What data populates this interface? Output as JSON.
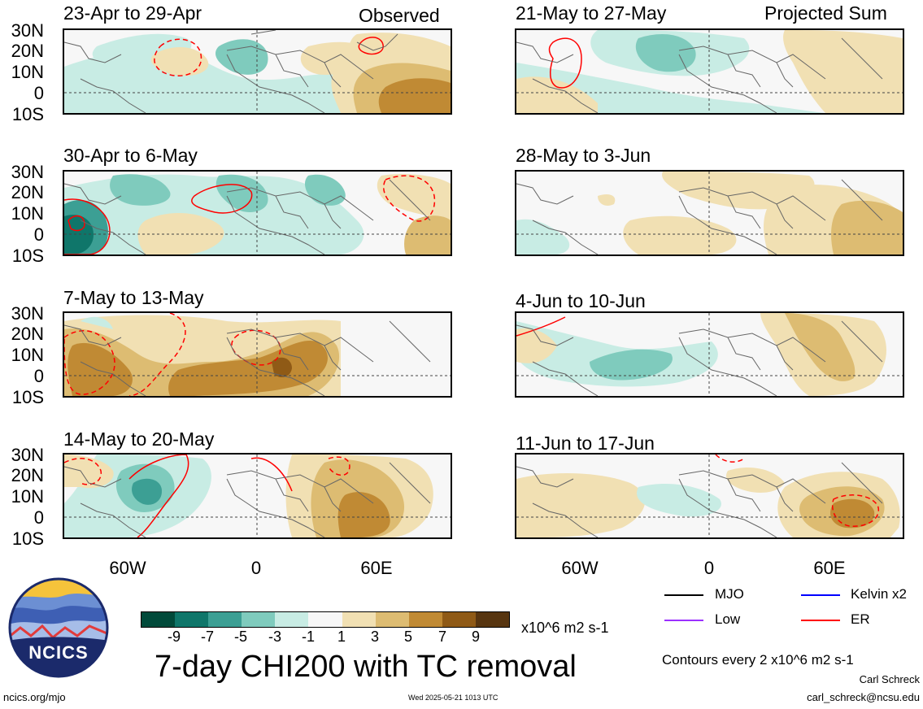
{
  "tags": {
    "observed": "Observed",
    "projected": "Projected Sum"
  },
  "lat_labels": [
    "30N",
    "20N",
    "10N",
    "0",
    "10S"
  ],
  "lon_labels": [
    "60W",
    "0",
    "60E"
  ],
  "left_panels": [
    {
      "title": "23-Apr to 29-Apr"
    },
    {
      "title": "30-Apr to 6-May"
    },
    {
      "title": "7-May to 13-May"
    },
    {
      "title": "14-May to 20-May"
    }
  ],
  "right_panels": [
    {
      "title": "21-May to 27-May"
    },
    {
      "title": "28-May to 3-Jun"
    },
    {
      "title": "4-Jun to 10-Jun"
    },
    {
      "title": "11-Jun to 17-Jun"
    }
  ],
  "colorbar": {
    "labels": [
      "-9",
      "-7",
      "-5",
      "-3",
      "-1",
      "1",
      "3",
      "5",
      "7",
      "9"
    ],
    "colors": [
      "#014a3a",
      "#0f766a",
      "#3c9f94",
      "#7fcbbd",
      "#c8ece4",
      "#f7f7f7",
      "#f1e0b3",
      "#ddbc72",
      "#c08a34",
      "#8f5a16",
      "#573510"
    ],
    "units": "x10^6 m2 s-1"
  },
  "main_title": "7-day CHI200 with TC removal",
  "legend": {
    "items": [
      {
        "label": "MJO",
        "color": "#000000"
      },
      {
        "label": "Kelvin x2",
        "color": "#0000ff"
      },
      {
        "label": "Low",
        "color": "#9b30ff"
      },
      {
        "label": "ER",
        "color": "#ff0000"
      }
    ],
    "contour_note": "Contours every 2 x10^6 m2 s-1"
  },
  "footer": {
    "url": "ncics.org/mjo",
    "timestamp": "Wed 2025-05-21 1013 UTC",
    "author": "Carl Schreck",
    "email": "carl_schreck@ncsu.edu"
  },
  "logo": {
    "text": "NCICS"
  }
}
